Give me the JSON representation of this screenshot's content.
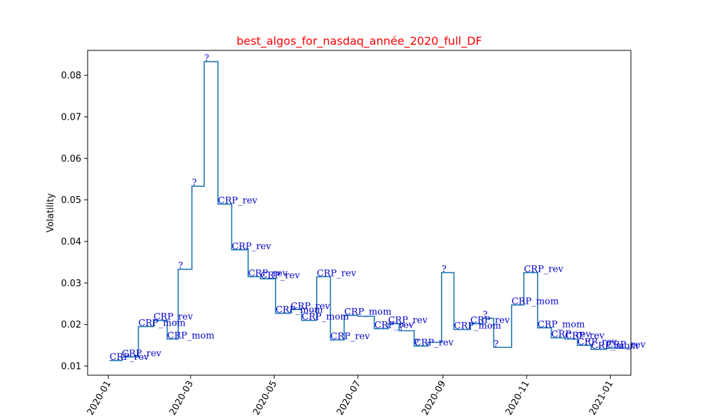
{
  "chart_data": {
    "type": "line",
    "title": "best_algos_for_nasdaq_année_2020_full_DF",
    "title_color": "#ff0000",
    "xlabel": "",
    "ylabel": "Volatility",
    "line_color": "#1f77b4",
    "annotation_color": "#0000cc",
    "xlim": [
      "2019-12-17",
      "2021-01-16"
    ],
    "ylim": [
      0.0078,
      0.086
    ],
    "x_ticks": [
      "2020-01-01",
      "2020-03-01",
      "2020-05-01",
      "2020-07-01",
      "2020-09-01",
      "2020-11-01",
      "2021-01-01"
    ],
    "x_tick_labels": [
      "2020-01",
      "2020-03",
      "2020-05",
      "2020-07",
      "2020-09",
      "2020-11",
      "2021-01"
    ],
    "y_ticks": [
      0.01,
      0.02,
      0.03,
      0.04,
      0.05,
      0.06,
      0.07,
      0.08
    ],
    "y_tick_labels": [
      "0.01",
      "0.02",
      "0.03",
      "0.04",
      "0.05",
      "0.06",
      "0.07",
      "0.08"
    ],
    "grid": false,
    "series": [
      {
        "points": [
          {
            "x": "2020-01-02",
            "y": 0.0113
          },
          {
            "x": "2020-01-11",
            "y": 0.0122
          },
          {
            "x": "2020-01-23",
            "y": 0.0195
          },
          {
            "x": "2020-02-03",
            "y": 0.021
          },
          {
            "x": "2020-02-13",
            "y": 0.0165
          },
          {
            "x": "2020-02-21",
            "y": 0.0333
          },
          {
            "x": "2020-03-02",
            "y": 0.0533
          },
          {
            "x": "2020-03-11",
            "y": 0.0833
          },
          {
            "x": "2020-03-21",
            "y": 0.049
          },
          {
            "x": "2020-03-31",
            "y": 0.038
          },
          {
            "x": "2020-04-12",
            "y": 0.0315
          },
          {
            "x": "2020-04-21",
            "y": 0.031
          },
          {
            "x": "2020-05-02",
            "y": 0.0227
          },
          {
            "x": "2020-05-13",
            "y": 0.0236
          },
          {
            "x": "2020-05-21",
            "y": 0.021
          },
          {
            "x": "2020-06-01",
            "y": 0.0315
          },
          {
            "x": "2020-06-11",
            "y": 0.0163
          },
          {
            "x": "2020-06-21",
            "y": 0.0222
          },
          {
            "x": "2020-07-01",
            "y": 0.022
          },
          {
            "x": "2020-07-13",
            "y": 0.019
          },
          {
            "x": "2020-07-23",
            "y": 0.0202
          },
          {
            "x": "2020-07-31",
            "y": 0.0185
          },
          {
            "x": "2020-08-11",
            "y": 0.0148
          },
          {
            "x": "2020-08-21",
            "y": 0.0157
          },
          {
            "x": "2020-08-31",
            "y": 0.0325
          },
          {
            "x": "2020-09-09",
            "y": 0.0188
          },
          {
            "x": "2020-09-21",
            "y": 0.0202
          },
          {
            "x": "2020-09-30",
            "y": 0.0215
          },
          {
            "x": "2020-10-08",
            "y": 0.0145
          },
          {
            "x": "2020-10-21",
            "y": 0.0247
          },
          {
            "x": "2020-10-30",
            "y": 0.0325
          },
          {
            "x": "2020-11-09",
            "y": 0.0192
          },
          {
            "x": "2020-11-19",
            "y": 0.0168
          },
          {
            "x": "2020-11-29",
            "y": 0.0165
          },
          {
            "x": "2020-12-08",
            "y": 0.015
          },
          {
            "x": "2020-12-18",
            "y": 0.014
          },
          {
            "x": "2020-12-29",
            "y": 0.0143
          },
          {
            "x": "2021-01-16",
            "y": 0.0143
          }
        ]
      }
    ],
    "annotations": [
      {
        "text": "CRP_rev",
        "x": "2020-01-02",
        "y": 0.0113
      },
      {
        "text": "CRP_rev",
        "x": "2020-01-11",
        "y": 0.0122
      },
      {
        "text": "CRP_mom",
        "x": "2020-01-23",
        "y": 0.0195
      },
      {
        "text": "CRP_rev",
        "x": "2020-02-03",
        "y": 0.021
      },
      {
        "text": "CRP_mom",
        "x": "2020-02-13",
        "y": 0.0165
      },
      {
        "text": "?",
        "x": "2020-02-21",
        "y": 0.0333
      },
      {
        "text": "?",
        "x": "2020-03-02",
        "y": 0.0533
      },
      {
        "text": "?",
        "x": "2020-03-11",
        "y": 0.0833
      },
      {
        "text": "CRP_rev",
        "x": "2020-03-21",
        "y": 0.049
      },
      {
        "text": "CRP_rev",
        "x": "2020-03-31",
        "y": 0.038
      },
      {
        "text": "CRP_rev",
        "x": "2020-04-12",
        "y": 0.0315
      },
      {
        "text": "CRP_rev",
        "x": "2020-04-21",
        "y": 0.031
      },
      {
        "text": "CRP_mom",
        "x": "2020-05-02",
        "y": 0.0227
      },
      {
        "text": "CRP_rev",
        "x": "2020-05-13",
        "y": 0.0236
      },
      {
        "text": "CRP_mom",
        "x": "2020-05-21",
        "y": 0.021
      },
      {
        "text": "CRP_rev",
        "x": "2020-06-01",
        "y": 0.0315
      },
      {
        "text": "CRP_rev",
        "x": "2020-06-11",
        "y": 0.0163
      },
      {
        "text": "CRP_mom",
        "x": "2020-06-21",
        "y": 0.0222
      },
      {
        "text": "CRP_rev",
        "x": "2020-07-13",
        "y": 0.019
      },
      {
        "text": "CRP_rev",
        "x": "2020-07-23",
        "y": 0.0202
      },
      {
        "text": "?",
        "x": "2020-07-31",
        "y": 0.0185
      },
      {
        "text": "?",
        "x": "2020-08-11",
        "y": 0.0148
      },
      {
        "text": "CRP_rev",
        "x": "2020-08-11",
        "y": 0.0148
      },
      {
        "text": "?",
        "x": "2020-08-31",
        "y": 0.0325
      },
      {
        "text": "CRP_mom",
        "x": "2020-09-09",
        "y": 0.0188
      },
      {
        "text": "CRP_rev",
        "x": "2020-09-21",
        "y": 0.0202
      },
      {
        "text": "?",
        "x": "2020-09-30",
        "y": 0.0215
      },
      {
        "text": "?",
        "x": "2020-10-08",
        "y": 0.0145
      },
      {
        "text": "CRP_mom",
        "x": "2020-10-21",
        "y": 0.0247
      },
      {
        "text": "CRP_rev",
        "x": "2020-10-30",
        "y": 0.0325
      },
      {
        "text": "CRP_mom",
        "x": "2020-11-09",
        "y": 0.0192
      },
      {
        "text": "CRP_rev",
        "x": "2020-11-19",
        "y": 0.0168
      },
      {
        "text": "CRP_rev",
        "x": "2020-11-29",
        "y": 0.0165
      },
      {
        "text": "CRP_rev",
        "x": "2020-12-08",
        "y": 0.015
      },
      {
        "text": "CRP_mom",
        "x": "2020-12-18",
        "y": 0.014
      },
      {
        "text": "CRP_rev",
        "x": "2020-12-29",
        "y": 0.0143
      }
    ]
  }
}
